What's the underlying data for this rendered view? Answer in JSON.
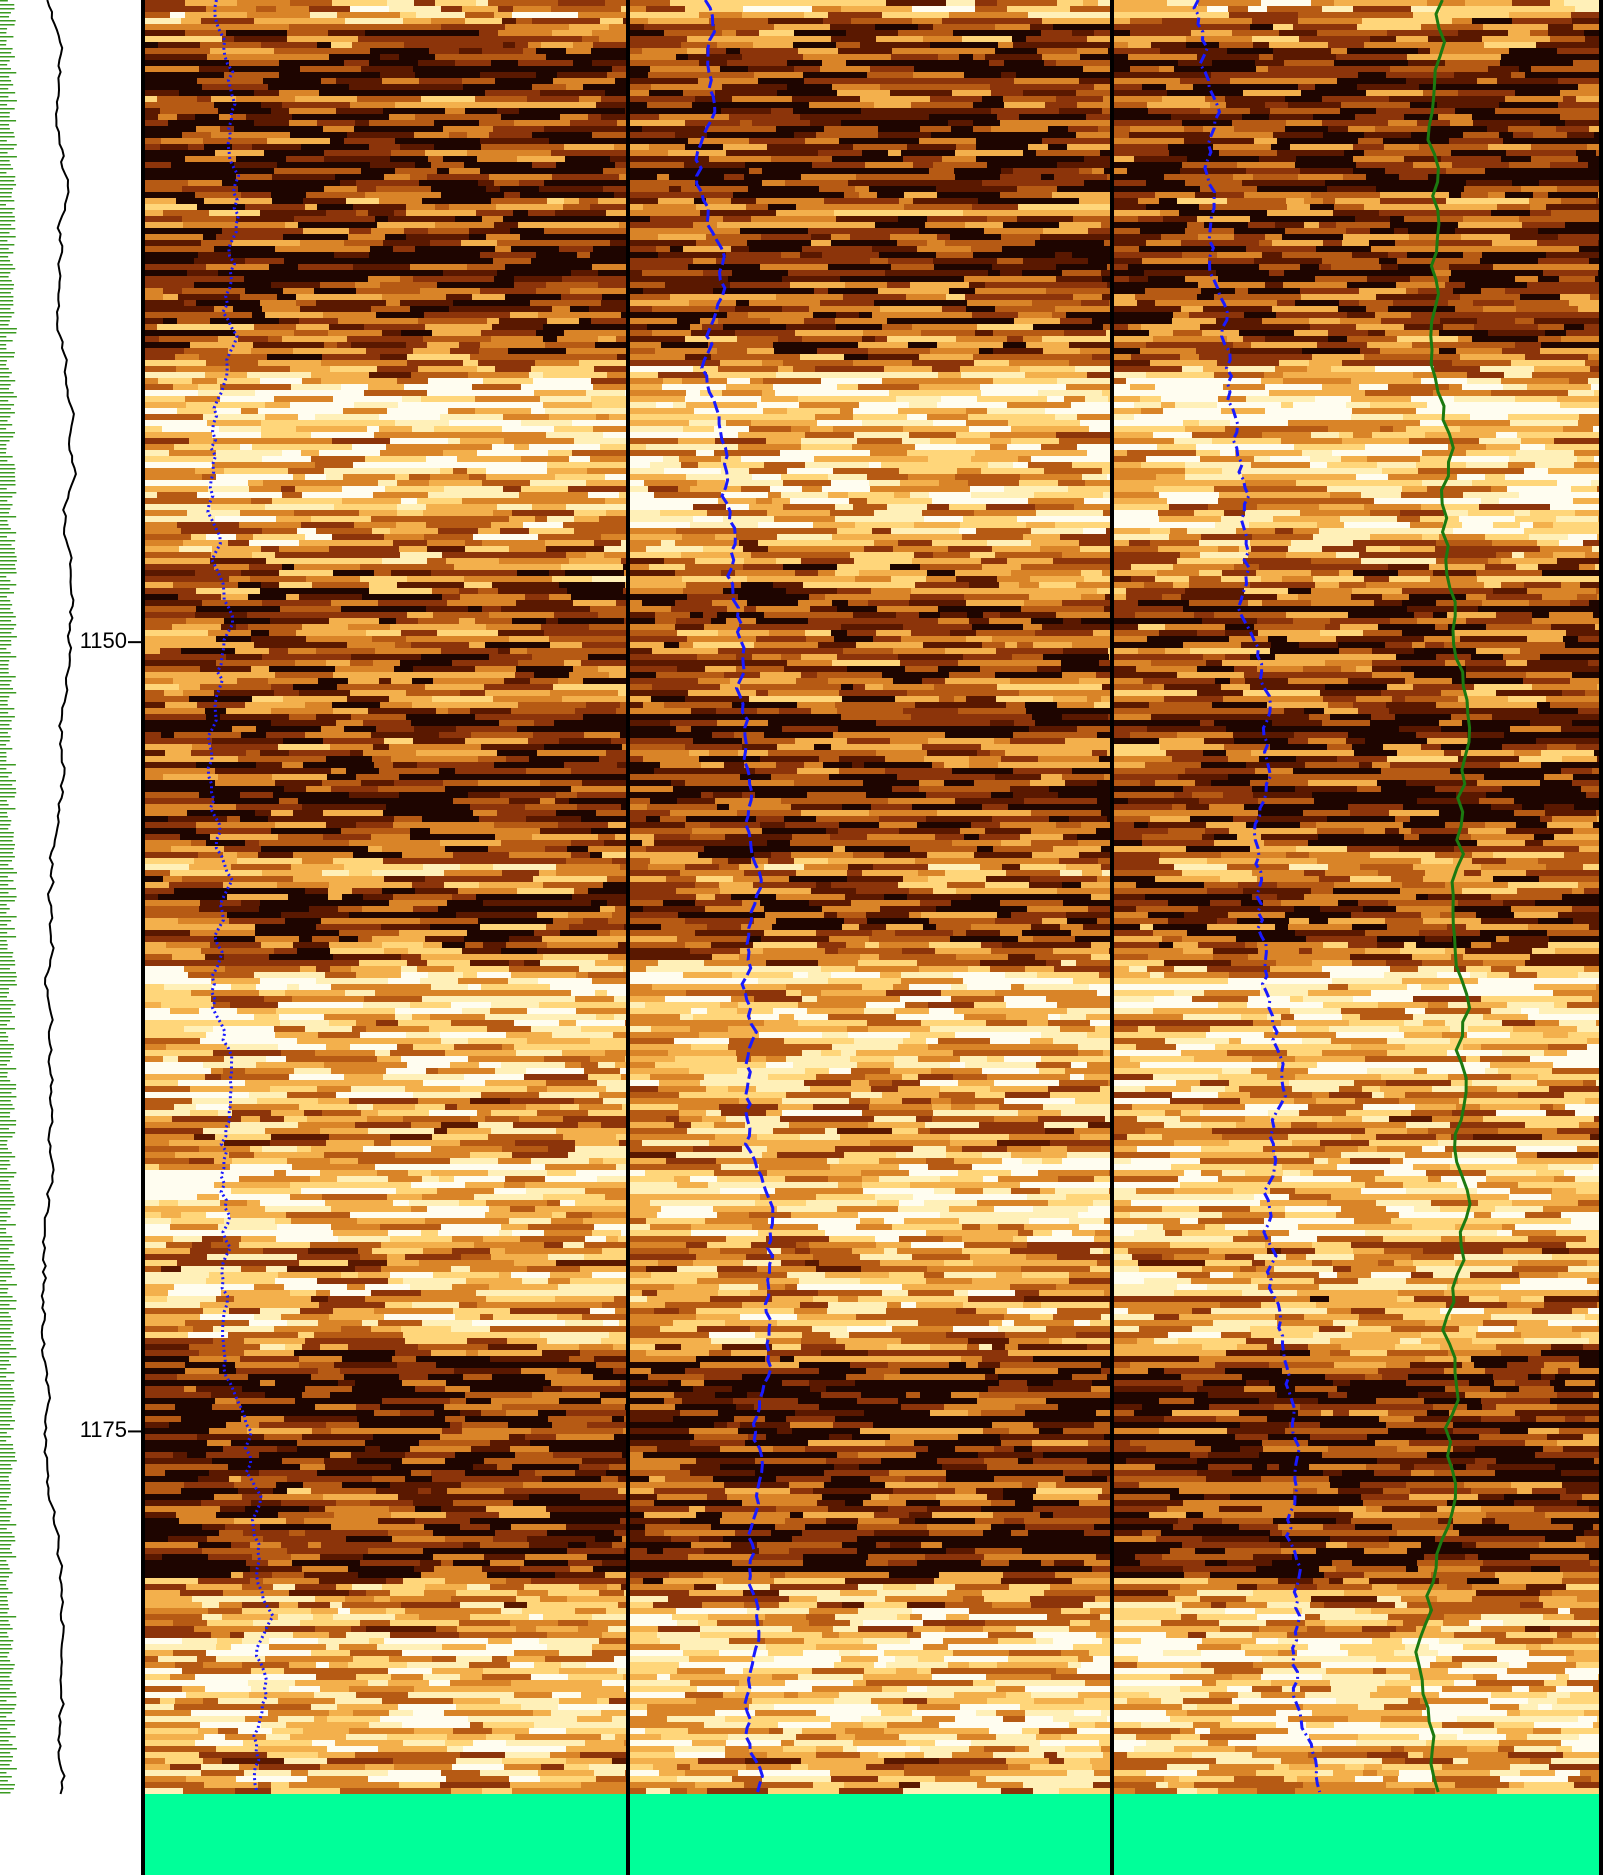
{
  "chart_data": {
    "type": "well-log-image",
    "ylim": [
      1129.66,
      1189.05
    ],
    "yticks": [
      1150,
      1175
    ]
  }
}
